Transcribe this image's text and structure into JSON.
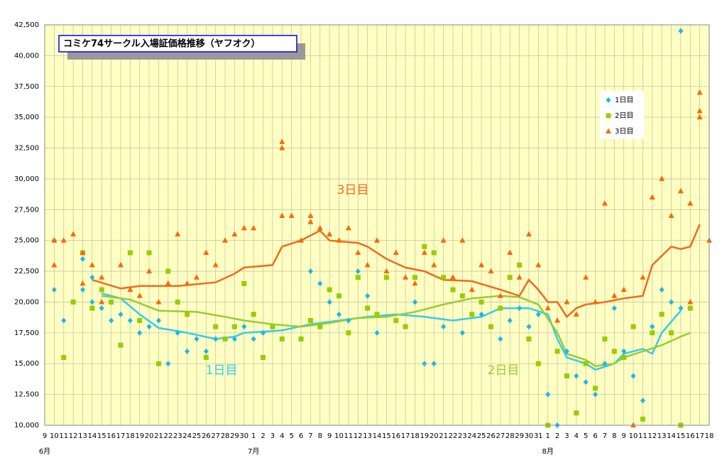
{
  "chart_data": {
    "type": "scatter",
    "title": "コミケ74サークル入場証価格推移（ヤフオク）",
    "xlim": [
      0,
      70
    ],
    "xticks": [
      {
        "value": 0,
        "label": "9"
      },
      {
        "value": 1,
        "label": "10"
      },
      {
        "value": 2,
        "label": "11"
      },
      {
        "value": 3,
        "label": "12"
      },
      {
        "value": 4,
        "label": "13"
      },
      {
        "value": 5,
        "label": "14"
      },
      {
        "value": 6,
        "label": "15"
      },
      {
        "value": 7,
        "label": "16"
      },
      {
        "value": 8,
        "label": "17"
      },
      {
        "value": 9,
        "label": "18"
      },
      {
        "value": 10,
        "label": "19"
      },
      {
        "value": 11,
        "label": "20"
      },
      {
        "value": 12,
        "label": "21"
      },
      {
        "value": 13,
        "label": "22"
      },
      {
        "value": 14,
        "label": "23"
      },
      {
        "value": 15,
        "label": "24"
      },
      {
        "value": 16,
        "label": "25"
      },
      {
        "value": 17,
        "label": "26"
      },
      {
        "value": 18,
        "label": "27"
      },
      {
        "value": 19,
        "label": "28"
      },
      {
        "value": 20,
        "label": "29"
      },
      {
        "value": 21,
        "label": "30"
      },
      {
        "value": 22,
        "label": "1"
      },
      {
        "value": 23,
        "label": "2"
      },
      {
        "value": 24,
        "label": "3"
      },
      {
        "value": 25,
        "label": "4"
      },
      {
        "value": 26,
        "label": "5"
      },
      {
        "value": 27,
        "label": "6"
      },
      {
        "value": 28,
        "label": "7"
      },
      {
        "value": 29,
        "label": "8"
      },
      {
        "value": 30,
        "label": "9"
      },
      {
        "value": 31,
        "label": "10"
      },
      {
        "value": 32,
        "label": "11"
      },
      {
        "value": 33,
        "label": "12"
      },
      {
        "value": 34,
        "label": "13"
      },
      {
        "value": 35,
        "label": "14"
      },
      {
        "value": 36,
        "label": "15"
      },
      {
        "value": 37,
        "label": "16"
      },
      {
        "value": 38,
        "label": "17"
      },
      {
        "value": 39,
        "label": "18"
      },
      {
        "value": 40,
        "label": "19"
      },
      {
        "value": 41,
        "label": "20"
      },
      {
        "value": 42,
        "label": "21"
      },
      {
        "value": 43,
        "label": "22"
      },
      {
        "value": 44,
        "label": "23"
      },
      {
        "value": 45,
        "label": "24"
      },
      {
        "value": 46,
        "label": "25"
      },
      {
        "value": 47,
        "label": "26"
      },
      {
        "value": 48,
        "label": "27"
      },
      {
        "value": 49,
        "label": "28"
      },
      {
        "value": 50,
        "label": "29"
      },
      {
        "value": 51,
        "label": "30"
      },
      {
        "value": 52,
        "label": "31"
      },
      {
        "value": 53,
        "label": "1"
      },
      {
        "value": 54,
        "label": "2"
      },
      {
        "value": 55,
        "label": "3"
      },
      {
        "value": 56,
        "label": "4"
      },
      {
        "value": 57,
        "label": "5"
      },
      {
        "value": 58,
        "label": "6"
      },
      {
        "value": 59,
        "label": "7"
      },
      {
        "value": 60,
        "label": "8"
      },
      {
        "value": 61,
        "label": "9"
      },
      {
        "value": 62,
        "label": "10"
      },
      {
        "value": 63,
        "label": "11"
      },
      {
        "value": 64,
        "label": "12"
      },
      {
        "value": 65,
        "label": "13"
      },
      {
        "value": 66,
        "label": "14"
      },
      {
        "value": 67,
        "label": "15"
      },
      {
        "value": 68,
        "label": "16"
      },
      {
        "value": 69,
        "label": "17"
      },
      {
        "value": 70,
        "label": "18"
      }
    ],
    "months": [
      {
        "value": 0,
        "label": "6月"
      },
      {
        "value": 22,
        "label": "7月"
      },
      {
        "value": 53,
        "label": "8月"
      }
    ],
    "ylim": [
      10000,
      42500
    ],
    "yticks": [
      {
        "value": 10000,
        "label": "10,000"
      },
      {
        "value": 12500,
        "label": "12,500"
      },
      {
        "value": 15000,
        "label": "15,000"
      },
      {
        "value": 17500,
        "label": "17,500"
      },
      {
        "value": 20000,
        "label": "20,000"
      },
      {
        "value": 22500,
        "label": "22,500"
      },
      {
        "value": 25000,
        "label": "25,000"
      },
      {
        "value": 27500,
        "label": "27,500"
      },
      {
        "value": 30000,
        "label": "30,000"
      },
      {
        "value": 32500,
        "label": "32,500"
      },
      {
        "value": 35000,
        "label": "35,000"
      },
      {
        "value": 37500,
        "label": "37,500"
      },
      {
        "value": 40000,
        "label": "40,000"
      },
      {
        "value": 42500,
        "label": "42,500"
      }
    ],
    "grid": true,
    "legend": "upper right",
    "series": [
      {
        "name": "1日目",
        "color": "#1ab8e8",
        "marker": "diamond",
        "x": [
          1,
          1,
          2,
          3,
          4,
          4,
          5,
          5,
          6,
          7,
          8,
          9,
          10,
          11,
          12,
          13,
          14,
          15,
          16,
          17,
          18,
          19,
          20,
          21,
          22,
          23,
          27,
          28,
          29,
          30,
          31,
          32,
          33,
          34,
          35,
          37,
          39,
          40,
          41,
          42,
          44,
          46,
          48,
          49,
          50,
          51,
          52,
          53,
          54,
          55,
          56,
          57,
          58,
          59,
          60,
          61,
          62,
          63,
          64,
          65,
          66,
          67,
          67
        ],
        "values": [
          25000,
          21000,
          18500,
          20000,
          23500,
          21000,
          22000,
          20000,
          19500,
          18500,
          19000,
          18500,
          17500,
          18000,
          18500,
          15000,
          17500,
          16000,
          17000,
          16000,
          17000,
          17000,
          17000,
          18000,
          17000,
          17500,
          17000,
          22500,
          21500,
          20000,
          19000,
          18500,
          22500,
          20500,
          17500,
          18500,
          20000,
          15000,
          15000,
          18000,
          17500,
          19000,
          17000,
          18500,
          19500,
          18000,
          19000,
          12500,
          10000,
          16000,
          14000,
          13500,
          12500,
          15000,
          19500,
          16000,
          14000,
          12000,
          18000,
          21000,
          20000,
          42000,
          19500
        ]
      },
      {
        "name": "2日目",
        "color": "#99cc00",
        "marker": "square",
        "x": [
          2,
          3,
          4,
          5,
          6,
          7,
          8,
          9,
          10,
          11,
          12,
          13,
          14,
          15,
          17,
          18,
          19,
          20,
          21,
          22,
          23,
          24,
          25,
          27,
          28,
          29,
          30,
          31,
          32,
          33,
          34,
          35,
          36,
          37,
          38,
          39,
          40,
          41,
          42,
          43,
          44,
          45,
          46,
          47,
          48,
          49,
          50,
          51,
          52,
          53,
          54,
          55,
          56,
          57,
          58,
          59,
          60,
          61,
          62,
          63,
          64,
          65,
          66,
          67,
          68
        ],
        "values": [
          15500,
          20000,
          24000,
          19500,
          21000,
          20000,
          16500,
          24000,
          18500,
          24000,
          15000,
          22500,
          20000,
          19000,
          15500,
          18000,
          17000,
          18000,
          21500,
          19000,
          15500,
          18000,
          17000,
          17000,
          18500,
          18000,
          21000,
          20500,
          17500,
          22000,
          19500,
          19000,
          22000,
          18500,
          18000,
          22000,
          24500,
          24000,
          22000,
          21000,
          20500,
          19000,
          20000,
          18000,
          19500,
          22000,
          23000,
          17000,
          15000,
          10000,
          16000,
          14000,
          11000,
          15000,
          13000,
          17000,
          16000,
          15500,
          18000,
          10500,
          17500,
          19000,
          17500,
          10000,
          19500
        ]
      },
      {
        "name": "3日目",
        "color": "#ff6600",
        "marker": "triangle",
        "x": [
          1,
          1,
          2,
          3,
          4,
          4,
          5,
          6,
          6,
          8,
          9,
          10,
          11,
          12,
          13,
          14,
          15,
          16,
          17,
          18,
          19,
          20,
          21,
          22,
          25,
          25,
          25,
          26,
          27,
          28,
          28,
          29,
          30,
          31,
          32,
          33,
          34,
          35,
          36,
          37,
          38,
          39,
          40,
          41,
          42,
          43,
          44,
          45,
          46,
          47,
          48,
          49,
          50,
          51,
          52,
          53,
          54,
          55,
          56,
          57,
          58,
          59,
          60,
          61,
          62,
          63,
          64,
          65,
          66,
          67,
          68,
          68,
          69,
          69,
          69,
          70
        ],
        "values": [
          23000,
          25000,
          25000,
          25500,
          24000,
          21500,
          23000,
          22000,
          20000,
          23000,
          21000,
          20500,
          22500,
          20000,
          21500,
          25500,
          21500,
          22000,
          24000,
          23000,
          25000,
          25500,
          26000,
          26000,
          33000,
          32500,
          27000,
          27000,
          25000,
          26500,
          27000,
          26000,
          25500,
          25000,
          26000,
          24000,
          23000,
          25000,
          22500,
          24000,
          22000,
          21500,
          24000,
          23000,
          25000,
          22000,
          25000,
          21000,
          23000,
          22500,
          20500,
          24000,
          22000,
          25500,
          23000,
          19500,
          18500,
          20000,
          19000,
          22000,
          20000,
          28000,
          20500,
          21000,
          10000,
          22000,
          28500,
          30000,
          27000,
          29000,
          28000,
          20000,
          37000,
          35500,
          35000,
          25000
        ]
      }
    ],
    "trend_lines": [
      {
        "label": "1日目",
        "color": "#33ccee",
        "x": [
          6,
          8,
          10,
          12,
          15,
          18,
          20,
          21,
          25,
          28,
          31,
          34,
          37,
          40,
          43,
          46,
          48,
          51,
          53,
          54,
          55,
          57,
          58,
          60,
          61,
          63,
          64,
          65,
          67
        ],
        "values": [
          20700,
          20300,
          19000,
          17900,
          17500,
          17000,
          17200,
          17500,
          17700,
          18200,
          18500,
          18800,
          19000,
          18800,
          18500,
          18800,
          19500,
          19500,
          19000,
          17000,
          15500,
          15000,
          14500,
          15000,
          15800,
          16200,
          15800,
          17500,
          19300
        ]
      },
      {
        "label": "2日目",
        "color": "#99cc33",
        "x": [
          6,
          9,
          12,
          16,
          19,
          21,
          24,
          27,
          30,
          33,
          36,
          39,
          42,
          45,
          48,
          50,
          52,
          54,
          55,
          57,
          58,
          60,
          61,
          63,
          65,
          67,
          68
        ],
        "values": [
          20500,
          20200,
          19300,
          19200,
          18800,
          18500,
          18200,
          18000,
          18300,
          18700,
          18800,
          19200,
          19800,
          20300,
          20500,
          20400,
          19800,
          17500,
          15800,
          15300,
          14800,
          15000,
          15500,
          16000,
          16500,
          17200,
          17500
        ]
      },
      {
        "label": "3日目",
        "color": "#f26a1b",
        "x": [
          5,
          8,
          10,
          14,
          18,
          20,
          21,
          24,
          25,
          27,
          29,
          30,
          33,
          34,
          36,
          38,
          40,
          42,
          45,
          48,
          50,
          51,
          52,
          53,
          54,
          55,
          56,
          57,
          59,
          61,
          63,
          64,
          66,
          67,
          68,
          69
        ],
        "values": [
          21800,
          21100,
          21300,
          21300,
          21600,
          22300,
          22800,
          23000,
          24500,
          25000,
          25800,
          25000,
          24800,
          24500,
          23500,
          22800,
          22500,
          21800,
          21700,
          21000,
          20500,
          21800,
          21000,
          20000,
          20000,
          18800,
          19500,
          19800,
          20000,
          20300,
          20500,
          23000,
          24500,
          24300,
          24500,
          26300
        ]
      }
    ]
  }
}
